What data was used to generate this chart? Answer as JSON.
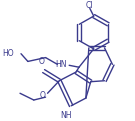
{
  "bg_color": "#ffffff",
  "line_color": "#3a3a8c",
  "text_color": "#3a3a8c",
  "figsize": [
    1.35,
    1.21
  ],
  "dpi": 100,
  "lw": 1.0,
  "font_size": 5.5,
  "xlim": [
    0,
    135
  ],
  "ylim": [
    0,
    121
  ]
}
